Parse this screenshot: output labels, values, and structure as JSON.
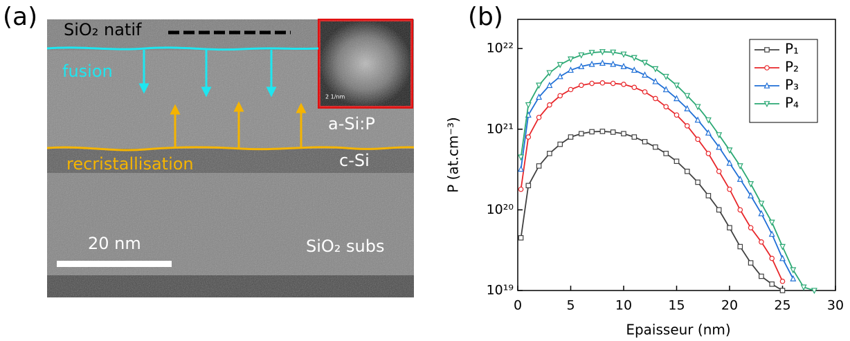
{
  "panel_a": {
    "label": "(a)",
    "native_oxide": "SiO₂ natif",
    "melt": "fusion",
    "amorphous": "a-Si:P",
    "recrystallisation": "recristallisation",
    "crystal": "c-Si",
    "scale_bar": "20 nm",
    "substrate": "SiO₂ subs",
    "inset_scale": "2 1/nm"
  },
  "chart_data": {
    "type": "line",
    "panel_label": "(b)",
    "xlabel": "Epaisseur (nm)",
    "ylabel": "P (at.cm⁻³)",
    "log_y": true,
    "legend": "upper right",
    "x": [
      0.3,
      1,
      2,
      3,
      4,
      5,
      6,
      7,
      8,
      9,
      10,
      11,
      12,
      13,
      14,
      15,
      16,
      17,
      18,
      19,
      20,
      21,
      22,
      23,
      24,
      25,
      26,
      27,
      28
    ],
    "series": [
      {
        "name": "P₁",
        "color": "#404040",
        "marker": "square",
        "values": [
          4.5e+19,
          2e+20,
          3.5e+20,
          5e+20,
          6.5e+20,
          8e+20,
          8.8e+20,
          9.3e+20,
          9.4e+20,
          9.2e+20,
          8.8e+20,
          8e+20,
          7e+20,
          6e+20,
          5e+20,
          4e+20,
          3e+20,
          2.2e+20,
          1.5e+20,
          1e+20,
          6e+19,
          3.5e+19,
          2.2e+19,
          1.5e+19,
          1.2e+19,
          1e+19,
          null,
          null,
          null
        ]
      },
      {
        "name": "P₂",
        "color": "#e8262a",
        "marker": "circle",
        "values": [
          1.8e+20,
          8e+20,
          1.4e+21,
          2e+21,
          2.6e+21,
          3.1e+21,
          3.5e+21,
          3.7e+21,
          3.75e+21,
          3.7e+21,
          3.6e+21,
          3.3e+21,
          2.9e+21,
          2.4e+21,
          1.9e+21,
          1.5e+21,
          1.1e+21,
          7.5e+20,
          5e+20,
          3e+20,
          1.8e+20,
          1e+20,
          6e+19,
          4e+19,
          2.5e+19,
          1.3e+19,
          null,
          null,
          null
        ]
      },
      {
        "name": "P₃",
        "color": "#1f6fd6",
        "marker": "triangle-up",
        "values": [
          3.2e+20,
          1.5e+21,
          2.5e+21,
          3.5e+21,
          4.5e+21,
          5.4e+21,
          6e+21,
          6.4e+21,
          6.6e+21,
          6.4e+21,
          6e+21,
          5.4e+21,
          4.7e+21,
          3.9e+21,
          3.1e+21,
          2.4e+21,
          1.8e+21,
          1.3e+21,
          9e+20,
          6e+20,
          3.8e+20,
          2.4e+20,
          1.5e+20,
          9e+19,
          5e+19,
          2.5e+19,
          1.4e+19,
          null,
          null
        ]
      },
      {
        "name": "P₄",
        "color": "#2aa873",
        "marker": "triangle-down",
        "values": [
          4.5e+20,
          2e+21,
          3.5e+21,
          5e+21,
          6.3e+21,
          7.4e+21,
          8.3e+21,
          8.9e+21,
          9.1e+21,
          9e+21,
          8.5e+21,
          7.7e+21,
          6.7e+21,
          5.6e+21,
          4.5e+21,
          3.5e+21,
          2.6e+21,
          1.9e+21,
          1.3e+21,
          8.5e+20,
          5.5e+20,
          3.5e+20,
          2.1e+20,
          1.2e+20,
          7e+19,
          3.5e+19,
          1.8e+19,
          1.1e+19,
          1e+19
        ]
      }
    ],
    "xlim": [
      0,
      30
    ],
    "xticks": [
      0,
      5,
      10,
      15,
      20,
      25,
      30
    ],
    "ylim": [
      1e+19,
      2.3e+22
    ],
    "yticks": [
      {
        "value": 1e+19,
        "label": "10¹⁹"
      },
      {
        "value": 1e+20,
        "label": "10²⁰"
      },
      {
        "value": 1e+21,
        "label": "10²¹"
      },
      {
        "value": 1e+22,
        "label": "10²²"
      }
    ]
  }
}
